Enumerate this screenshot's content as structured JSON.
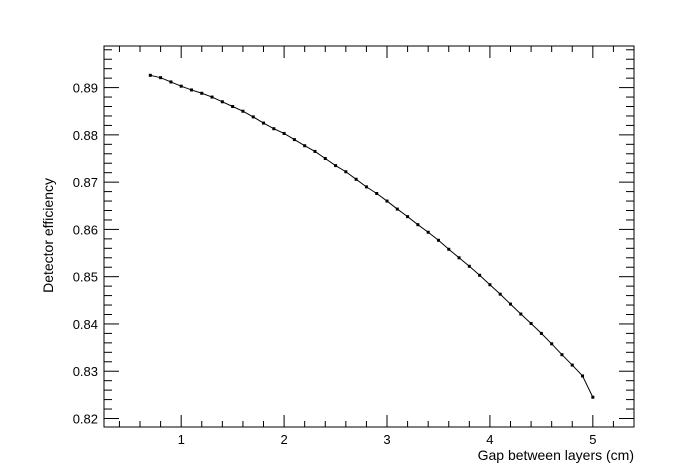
{
  "chart_data": {
    "type": "line",
    "title": "",
    "xlabel": "Gap between layers (cm)",
    "ylabel": "Detector efficiency",
    "xlim": [
      0.25,
      5.4
    ],
    "ylim": [
      0.8182,
      0.8988
    ],
    "x_ticks": [
      1,
      2,
      3,
      4,
      5
    ],
    "y_ticks": [
      0.82,
      0.83,
      0.84,
      0.85,
      0.86,
      0.87,
      0.88,
      0.89
    ],
    "x_tick_labels": [
      "1",
      "2",
      "3",
      "4",
      "5"
    ],
    "y_tick_labels": [
      "0.82",
      "0.83",
      "0.84",
      "0.85",
      "0.86",
      "0.87",
      "0.88",
      "0.89"
    ],
    "grid": false,
    "legend": "none",
    "series": [
      {
        "color": "#000000",
        "marker": "square",
        "x": [
          0.7,
          0.8,
          0.9,
          1.0,
          1.1,
          1.2,
          1.3,
          1.4,
          1.5,
          1.6,
          1.7,
          1.8,
          1.9,
          2.0,
          2.1,
          2.2,
          2.3,
          2.4,
          2.5,
          2.6,
          2.7,
          2.8,
          2.9,
          3.0,
          3.1,
          3.2,
          3.3,
          3.4,
          3.5,
          3.6,
          3.7,
          3.8,
          3.9,
          4.0,
          4.1,
          4.2,
          4.3,
          4.4,
          4.5,
          4.6,
          4.7,
          4.8,
          4.9,
          5.0
        ],
        "y": [
          0.8926,
          0.8921,
          0.8912,
          0.8903,
          0.8895,
          0.8888,
          0.888,
          0.887,
          0.886,
          0.885,
          0.8838,
          0.8825,
          0.8813,
          0.8803,
          0.879,
          0.8777,
          0.8765,
          0.875,
          0.8735,
          0.8722,
          0.8706,
          0.869,
          0.8676,
          0.866,
          0.8643,
          0.8627,
          0.861,
          0.8594,
          0.8577,
          0.8558,
          0.854,
          0.8522,
          0.8503,
          0.8483,
          0.8463,
          0.8442,
          0.8421,
          0.8401,
          0.838,
          0.8358,
          0.8335,
          0.8313,
          0.829,
          0.8245
        ]
      }
    ]
  }
}
